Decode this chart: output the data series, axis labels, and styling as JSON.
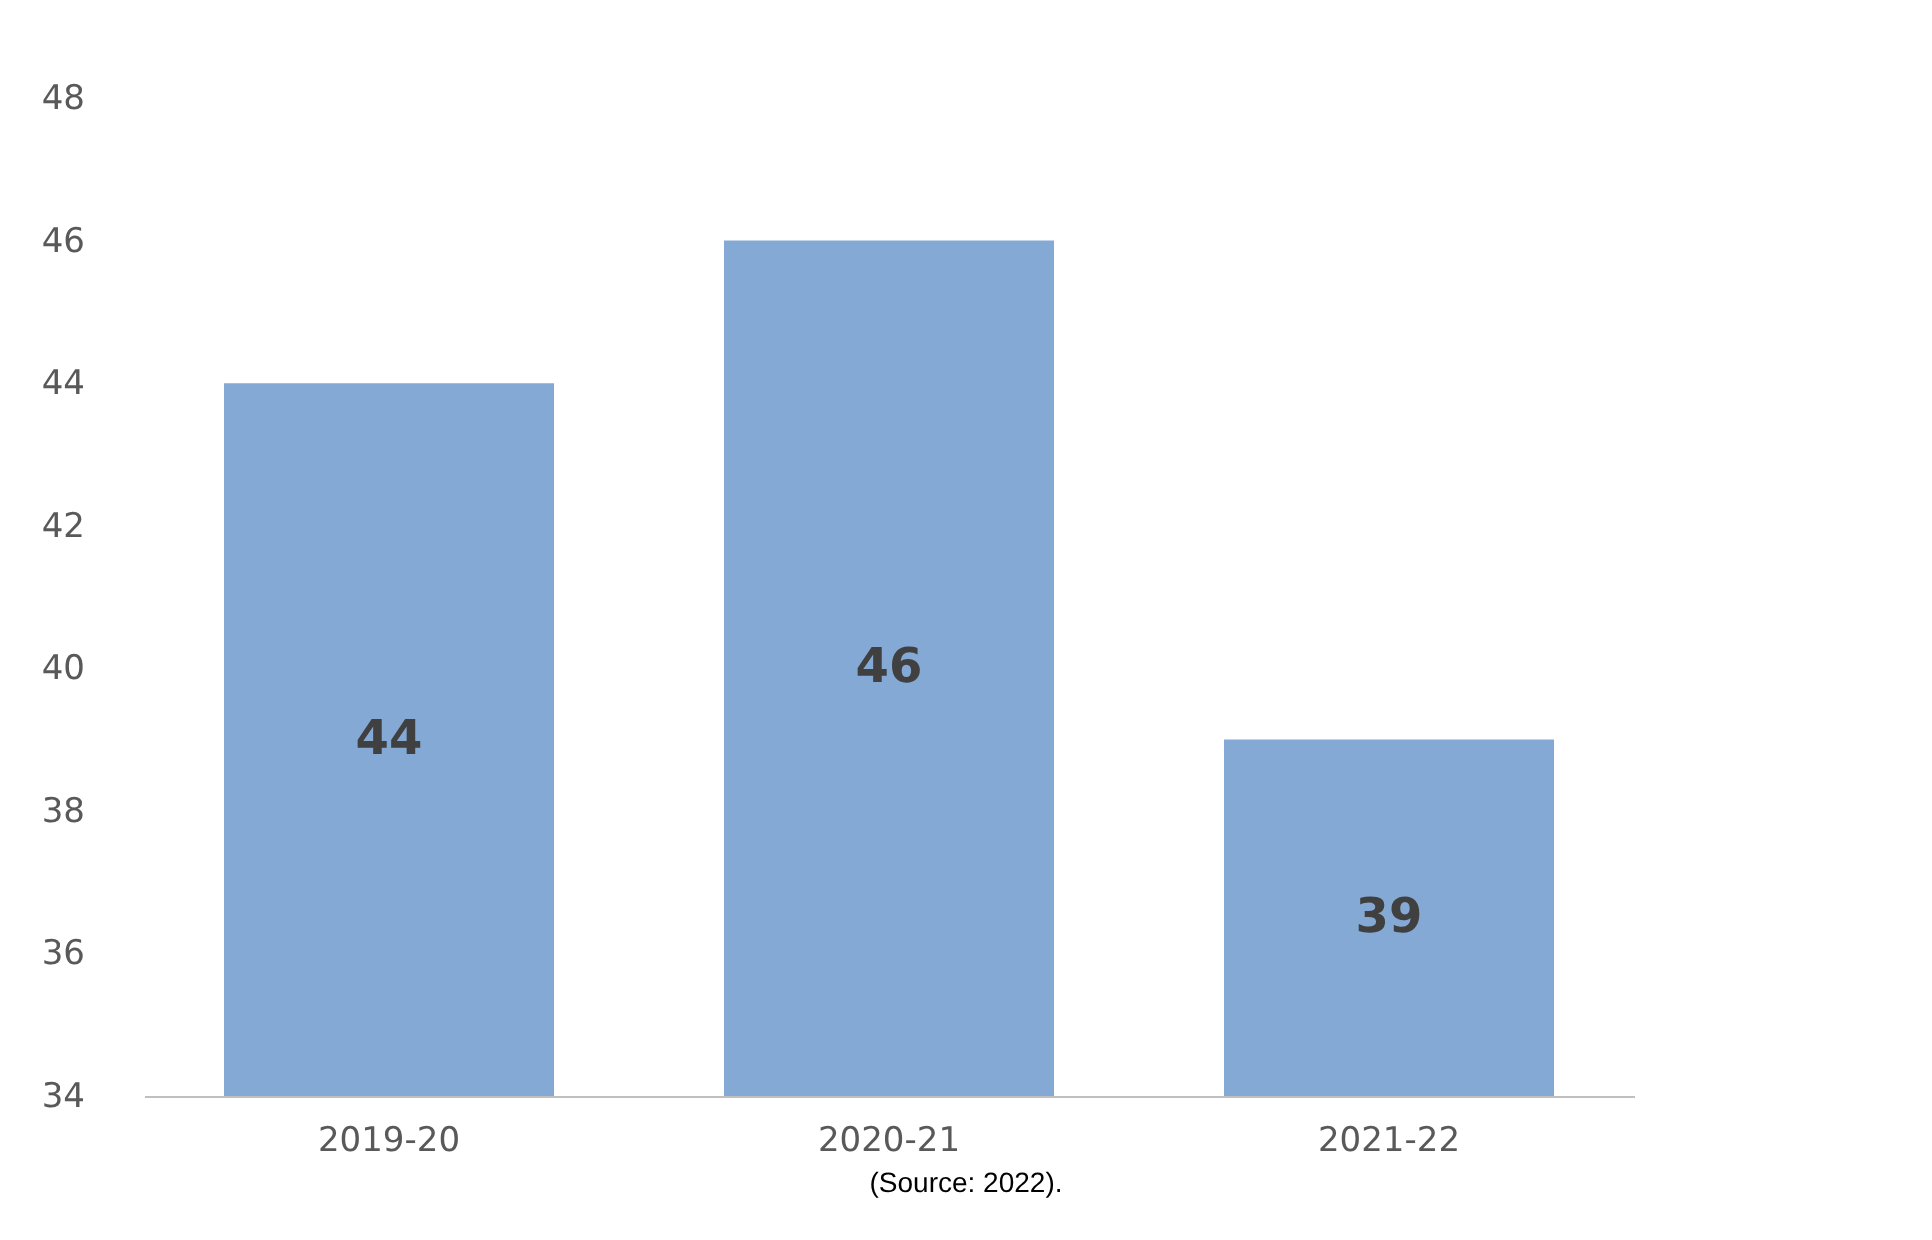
{
  "chart_data": {
    "type": "bar",
    "categories": [
      "2019-20",
      "2020-21",
      "2021-22"
    ],
    "values": [
      44,
      46,
      39
    ],
    "color": "#84a9d4",
    "ylim": [
      34,
      48
    ],
    "yticks": [
      34,
      36,
      38,
      40,
      42,
      44,
      46,
      48
    ],
    "grid": false,
    "data_labels": true,
    "annotations": [
      "(Source: 2022)."
    ]
  }
}
